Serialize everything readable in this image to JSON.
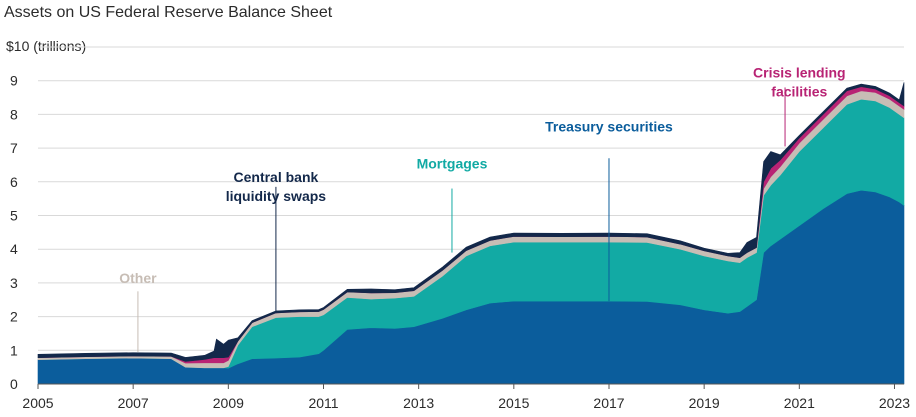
{
  "title": "Assets on US Federal Reserve Balance Sheet",
  "ylabel": "$10 (trillions)",
  "colors": {
    "treasury": "#0b5d9c",
    "mortgages": "#12aaa4",
    "other": "#c7bdb5",
    "crisis": "#b82374",
    "swaps": "#13284a",
    "grid": "#d9d9d9",
    "axis": "#555555",
    "text": "#2b2b2b"
  },
  "chart_data": {
    "type": "area",
    "stacked": true,
    "title": "Assets on US Federal Reserve Balance Sheet",
    "ylabel": "$10 (trillions)",
    "xlabel": "",
    "xlim": [
      2005,
      2023.2
    ],
    "ylim": [
      0,
      10
    ],
    "yticks": [
      0,
      1,
      2,
      3,
      4,
      5,
      6,
      7,
      8,
      9
    ],
    "ytick_labels": [
      "0",
      "1",
      "2",
      "3",
      "4",
      "5",
      "6",
      "7",
      "8",
      "9"
    ],
    "xticks": [
      2005,
      2007,
      2009,
      2011,
      2013,
      2015,
      2017,
      2019,
      2021,
      2023
    ],
    "xtick_labels": [
      "2005",
      "2007",
      "2009",
      "2011",
      "2013",
      "2015",
      "2017",
      "2019",
      "2021",
      "2023"
    ],
    "grid": true,
    "x": [
      2005.0,
      2006.0,
      2007.0,
      2007.8,
      2008.1,
      2008.5,
      2008.7,
      2008.75,
      2008.9,
      2009.0,
      2009.2,
      2009.5,
      2010.0,
      2010.5,
      2010.9,
      2011.0,
      2011.5,
      2012.0,
      2012.5,
      2012.9,
      2013.5,
      2014.0,
      2014.5,
      2015.0,
      2016.0,
      2017.0,
      2017.8,
      2018.5,
      2019.0,
      2019.5,
      2019.75,
      2019.9,
      2020.1,
      2020.25,
      2020.4,
      2020.6,
      2021.0,
      2021.5,
      2022.0,
      2022.3,
      2022.6,
      2022.9,
      2023.1,
      2023.2
    ],
    "series": [
      {
        "name": "Treasury securities",
        "color_key": "treasury",
        "values": [
          0.72,
          0.75,
          0.77,
          0.75,
          0.5,
          0.48,
          0.48,
          0.48,
          0.48,
          0.47,
          0.6,
          0.75,
          0.77,
          0.8,
          0.9,
          1.0,
          1.62,
          1.67,
          1.65,
          1.7,
          1.95,
          2.2,
          2.4,
          2.46,
          2.46,
          2.46,
          2.45,
          2.35,
          2.2,
          2.1,
          2.15,
          2.3,
          2.5,
          3.9,
          4.1,
          4.3,
          4.7,
          5.2,
          5.65,
          5.75,
          5.7,
          5.55,
          5.4,
          5.3
        ]
      },
      {
        "name": "Mortgages",
        "color_key": "mortgages",
        "values": [
          0.0,
          0.0,
          0.0,
          0.0,
          0.0,
          0.0,
          0.0,
          0.0,
          0.0,
          0.05,
          0.55,
          0.95,
          1.2,
          1.2,
          1.1,
          1.05,
          0.95,
          0.85,
          0.9,
          0.9,
          1.25,
          1.6,
          1.7,
          1.75,
          1.75,
          1.75,
          1.75,
          1.65,
          1.6,
          1.55,
          1.45,
          1.45,
          1.4,
          1.7,
          1.8,
          1.9,
          2.2,
          2.4,
          2.65,
          2.7,
          2.7,
          2.65,
          2.6,
          2.6
        ]
      },
      {
        "name": "Other",
        "color_key": "other",
        "values": [
          0.06,
          0.06,
          0.06,
          0.07,
          0.12,
          0.15,
          0.15,
          0.15,
          0.15,
          0.18,
          0.12,
          0.12,
          0.14,
          0.14,
          0.15,
          0.16,
          0.16,
          0.18,
          0.16,
          0.17,
          0.17,
          0.16,
          0.16,
          0.17,
          0.16,
          0.17,
          0.16,
          0.15,
          0.15,
          0.15,
          0.15,
          0.15,
          0.15,
          0.2,
          0.25,
          0.25,
          0.25,
          0.25,
          0.25,
          0.25,
          0.25,
          0.25,
          0.25,
          0.25
        ]
      },
      {
        "name": "Crisis lending facilities",
        "color_key": "crisis",
        "values": [
          0.0,
          0.0,
          0.0,
          0.0,
          0.05,
          0.1,
          0.15,
          0.15,
          0.15,
          0.1,
          0.0,
          0.0,
          0.0,
          0.0,
          0.0,
          0.0,
          0.0,
          0.0,
          0.0,
          0.0,
          0.0,
          0.0,
          0.0,
          0.0,
          0.0,
          0.0,
          0.0,
          0.0,
          0.0,
          0.0,
          0.0,
          0.0,
          0.0,
          0.2,
          0.25,
          0.2,
          0.15,
          0.15,
          0.15,
          0.12,
          0.1,
          0.1,
          0.1,
          0.1
        ]
      },
      {
        "name": "Central bank liquidity swaps",
        "color_key": "swaps",
        "values": [
          0.1,
          0.1,
          0.1,
          0.1,
          0.12,
          0.12,
          0.2,
          0.55,
          0.4,
          0.5,
          0.1,
          0.06,
          0.06,
          0.06,
          0.06,
          0.06,
          0.08,
          0.12,
          0.09,
          0.09,
          0.1,
          0.1,
          0.1,
          0.1,
          0.1,
          0.1,
          0.1,
          0.1,
          0.08,
          0.08,
          0.15,
          0.3,
          0.3,
          0.6,
          0.5,
          0.15,
          0.08,
          0.08,
          0.08,
          0.08,
          0.08,
          0.08,
          0.08,
          0.7
        ]
      }
    ]
  },
  "annotations": [
    {
      "lines": [
        "Other"
      ],
      "color_key": "other",
      "x": 2007.1,
      "y": 3.0,
      "lx": 2007.1,
      "ly0": 2.75,
      "ly1": 0.95
    },
    {
      "lines": [
        "Central bank",
        "liquidity swaps"
      ],
      "color_key": "swaps",
      "x": 2010.0,
      "y": 6.0,
      "lx": 2010.0,
      "ly0": 5.85,
      "ly1": 2.1
    },
    {
      "lines": [
        "Mortgages"
      ],
      "color_key": "mortgages",
      "x": 2013.7,
      "y": 6.4,
      "lx": 2013.7,
      "ly0": 5.8,
      "ly1": 3.9
    },
    {
      "lines": [
        "Treasury securities"
      ],
      "color_key": "treasury",
      "x": 2017.0,
      "y": 7.5,
      "lx": 2017.0,
      "ly0": 6.7,
      "ly1": 2.46
    },
    {
      "lines": [
        "Crisis lending",
        "facilities"
      ],
      "color_key": "crisis",
      "x": 2021.0,
      "y": 9.1,
      "lx": 2020.7,
      "ly0": 8.8,
      "ly1": 7.05
    }
  ]
}
